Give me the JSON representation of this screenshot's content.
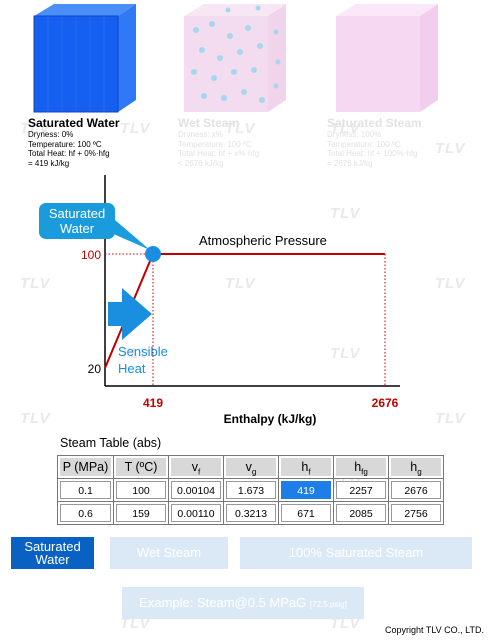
{
  "watermark_text": "TLV",
  "phases": [
    {
      "title": "Saturated Water",
      "dryness": "Dryness: 0%",
      "temperature": "Temperature: 100 ºC",
      "total_heat": "Total Heat: hf + 0%·hfg",
      "value": "= 419 kJ/kg"
    },
    {
      "title": "Wet Steam",
      "dryness": "Dryness: x%",
      "temperature": "Temperature: 100 ºC",
      "total_heat": "Total Heat: hf + x%·hfg",
      "value": "< 2676 kJ/kg"
    },
    {
      "title": "Saturated Steam",
      "dryness": "Dryness: 100%",
      "temperature": "Temperature: 100 ºC",
      "total_heat": "Total Heat: hf + 100%·hfg",
      "value": "= 2676 kJ/kg"
    }
  ],
  "chart_data": {
    "type": "line",
    "xlabel": "Enthalpy (kJ/kg)",
    "ylabel": "",
    "x_ticks": [
      "419",
      "2676"
    ],
    "y_ticks": [
      "100",
      "20"
    ],
    "series_label": "Atmospheric Pressure",
    "points": [
      {
        "x": 0,
        "y": 20
      },
      {
        "x": 419,
        "y": 100
      },
      {
        "x": 2676,
        "y": 100
      }
    ],
    "marker": {
      "x": 419,
      "y": 100
    },
    "callout": "Saturated Water",
    "arrow_label": "Sensible Heat",
    "colors": {
      "line": "#c00000",
      "marker": "#1a8fe0",
      "arrow": "#1a8fe0",
      "callout": "#1a9cdc"
    }
  },
  "steam_table": {
    "title": "Steam Table (abs)",
    "headers": [
      "P (MPa)",
      "T (ºC)",
      "v",
      "v",
      "h",
      "h",
      "h"
    ],
    "header_subs": [
      "",
      "",
      "f",
      "g",
      "f",
      "fg",
      "g"
    ],
    "rows": [
      [
        "0.1",
        "100",
        "0.00104",
        "1.673",
        "419",
        "2257",
        "2676"
      ],
      [
        "0.6",
        "159",
        "0.00110",
        "0.3213",
        "671",
        "2085",
        "2756"
      ]
    ]
  },
  "buttons": {
    "saturated_water": "Saturated Water",
    "wet_steam": "Wet Steam",
    "saturated_steam": "100% Saturated Steam",
    "example_main": "Example: Steam@0.5 MPaG",
    "example_sub": "[72.5 psig]"
  },
  "copyright": "Copyright TLV CO., LTD.",
  "colors": {
    "active_button": "#0a61c4",
    "faded_button": "#dbe9f7",
    "highlight_cell": "#1e7ee8"
  }
}
